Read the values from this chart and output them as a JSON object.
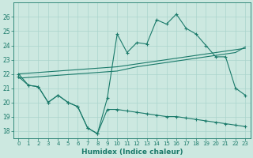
{
  "xlabel": "Humidex (Indice chaleur)",
  "bg_color": "#cce8e0",
  "line_color": "#1a7a6a",
  "grid_color": "#aad4cc",
  "x_values": [
    0,
    1,
    2,
    3,
    4,
    5,
    6,
    7,
    8,
    9,
    10,
    11,
    12,
    13,
    14,
    15,
    16,
    17,
    18,
    19,
    20,
    21,
    22,
    23
  ],
  "upper_series": [
    22.0,
    21.2,
    21.1,
    20.0,
    20.5,
    20.0,
    19.7,
    18.2,
    17.8,
    20.3,
    24.8,
    23.5,
    24.2,
    24.1,
    25.8,
    25.5,
    26.2,
    25.2,
    24.8,
    24.0,
    23.2,
    23.2,
    21.0,
    20.5
  ],
  "lower_series": [
    21.8,
    21.2,
    21.1,
    20.0,
    20.5,
    20.0,
    19.7,
    18.2,
    17.8,
    19.5,
    19.5,
    19.4,
    19.3,
    19.2,
    19.1,
    19.0,
    19.0,
    18.9,
    18.8,
    18.7,
    18.6,
    18.5,
    18.4,
    18.3
  ],
  "trend_upper": [
    22.0,
    22.05,
    22.1,
    22.15,
    22.2,
    22.25,
    22.3,
    22.35,
    22.4,
    22.45,
    22.5,
    22.6,
    22.7,
    22.8,
    22.9,
    23.0,
    23.1,
    23.2,
    23.3,
    23.4,
    23.5,
    23.6,
    23.7,
    23.8
  ],
  "trend_lower": [
    21.7,
    21.75,
    21.8,
    21.85,
    21.9,
    21.95,
    22.0,
    22.05,
    22.1,
    22.15,
    22.2,
    22.35,
    22.5,
    22.6,
    22.7,
    22.8,
    22.9,
    23.0,
    23.1,
    23.2,
    23.3,
    23.4,
    23.5,
    23.9
  ],
  "ylim": [
    17.5,
    27.0
  ],
  "yticks": [
    18,
    19,
    20,
    21,
    22,
    23,
    24,
    25,
    26
  ],
  "xticks": [
    0,
    1,
    2,
    3,
    4,
    5,
    6,
    7,
    8,
    9,
    10,
    11,
    12,
    13,
    14,
    15,
    16,
    17,
    18,
    19,
    20,
    21,
    22,
    23
  ],
  "figsize": [
    3.2,
    2.0
  ],
  "dpi": 100
}
